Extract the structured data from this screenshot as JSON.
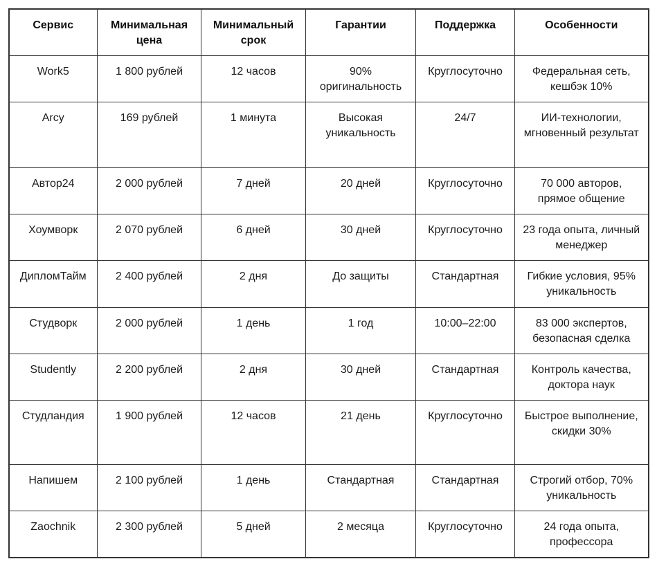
{
  "table": {
    "headers": [
      "Сервис",
      "Минимальная цена",
      "Минимальный срок",
      "Гарантии",
      "Поддержка",
      "Особенности"
    ],
    "rows": [
      [
        "Work5",
        "1 800 рублей",
        "12 часов",
        "90% оригинальность",
        "Круглосуточно",
        "Федеральная сеть, кешбэк 10%"
      ],
      [
        "Arcy",
        "169 рублей",
        "1 минута",
        "Высокая уникальность",
        "24/7",
        "ИИ-технологии, мгновенный результат"
      ],
      [
        "Автор24",
        "2 000 рублей",
        "7 дней",
        "20 дней",
        "Круглосуточно",
        "70 000 авторов, прямое общение"
      ],
      [
        "Хоумворк",
        "2 070 рублей",
        "6 дней",
        "30 дней",
        "Круглосуточно",
        "23 года опыта, личный менеджер"
      ],
      [
        "ДипломТайм",
        "2 400 рублей",
        "2 дня",
        "До защиты",
        "Стандартная",
        "Гибкие условия, 95% уникальность"
      ],
      [
        "Студворк",
        "2 000 рублей",
        "1 день",
        "1 год",
        "10:00–22:00",
        "83 000 экспертов, безопасная сделка"
      ],
      [
        "Studently",
        "2 200 рублей",
        "2 дня",
        "30 дней",
        "Стандартная",
        "Контроль качества, доктора наук"
      ],
      [
        "Студландия",
        "1 900 рублей",
        "12 часов",
        "21 день",
        "Круглосуточно",
        "Быстрое выполнение, скидки 30%"
      ],
      [
        "Напишем",
        "2 100 рублей",
        "1 день",
        "Стандартная",
        "Стандартная",
        "Строгий отбор, 70% уникальность"
      ],
      [
        "Zaochnik",
        "2 300 рублей",
        "5 дней",
        "2 месяца",
        "Круглосуточно",
        "24 года опыта, профессора"
      ]
    ]
  }
}
